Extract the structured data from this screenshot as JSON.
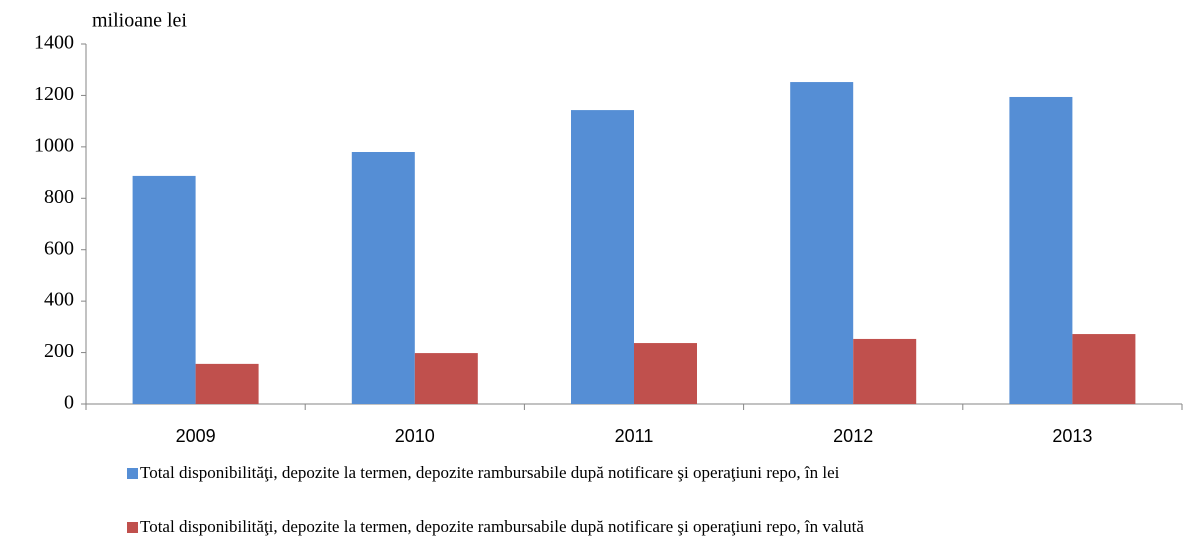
{
  "chart_data": {
    "type": "bar",
    "y_axis_label": "milioane lei",
    "categories": [
      "2009",
      "2010",
      "2011",
      "2012",
      "2013"
    ],
    "series": [
      {
        "name": "Total disponibilităţi, depozite la termen, depozite rambursabile după notificare şi operaţiuni repo, în lei",
        "color": "#558ed5",
        "values": [
          887,
          980,
          1143,
          1252,
          1194
        ]
      },
      {
        "name": "Total disponibilităţi, depozite la termen, depozite rambursabile după notificare şi operaţiuni repo, în valută",
        "color": "#c0504d",
        "values": [
          156,
          198,
          237,
          253,
          272
        ]
      }
    ],
    "ylim": [
      0,
      1400
    ],
    "yticks": [
      0,
      200,
      400,
      600,
      800,
      1000,
      1200,
      1400
    ],
    "grid": false
  }
}
